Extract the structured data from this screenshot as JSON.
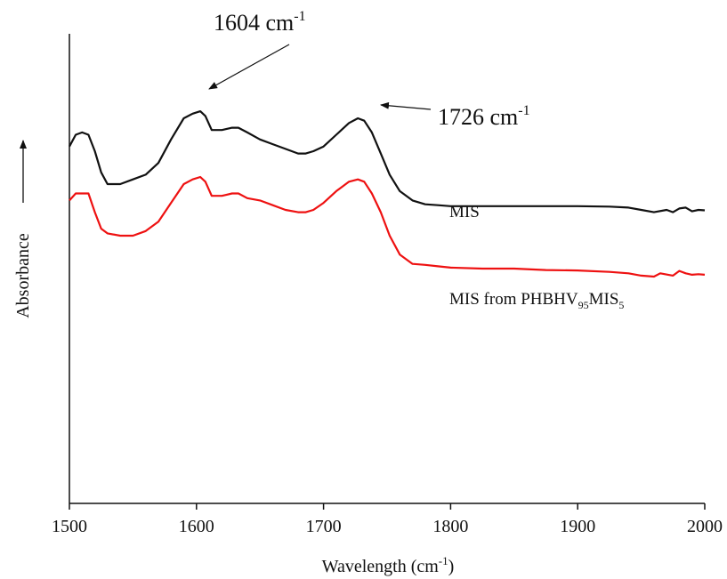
{
  "chart_data": {
    "type": "line",
    "title": "",
    "xlabel": "Wavelength (cm",
    "xlabel_sup": "-1",
    "xlabel_end": ")",
    "ylabel": "Absorbance",
    "xlim": [
      1500,
      2000
    ],
    "ylim": [
      0,
      1
    ],
    "y_ticks_shown": false,
    "grid": false,
    "x_ticks": [
      1500,
      1600,
      1700,
      1800,
      1900,
      2000
    ],
    "x_tick_labels": [
      "1500",
      "1600",
      "1700",
      "1800",
      "1900",
      "2000"
    ],
    "series": [
      {
        "name": "MIS",
        "color": "#111111",
        "x": [
          1500,
          1505,
          1510,
          1515,
          1520,
          1525,
          1530,
          1540,
          1550,
          1560,
          1570,
          1580,
          1590,
          1597,
          1603,
          1607,
          1612,
          1620,
          1628,
          1633,
          1640,
          1650,
          1660,
          1670,
          1680,
          1686,
          1692,
          1700,
          1710,
          1720,
          1727,
          1732,
          1738,
          1745,
          1752,
          1760,
          1770,
          1780,
          1790,
          1800,
          1825,
          1850,
          1875,
          1900,
          1925,
          1940,
          1950,
          1960,
          1970,
          1975,
          1980,
          1985,
          1990,
          1995,
          2000
        ],
        "y": [
          0.76,
          0.785,
          0.79,
          0.785,
          0.75,
          0.705,
          0.68,
          0.68,
          0.69,
          0.7,
          0.725,
          0.775,
          0.82,
          0.83,
          0.835,
          0.825,
          0.795,
          0.795,
          0.8,
          0.8,
          0.79,
          0.775,
          0.765,
          0.755,
          0.745,
          0.745,
          0.75,
          0.76,
          0.785,
          0.81,
          0.82,
          0.815,
          0.79,
          0.745,
          0.7,
          0.665,
          0.645,
          0.637,
          0.635,
          0.633,
          0.633,
          0.633,
          0.633,
          0.633,
          0.632,
          0.63,
          0.625,
          0.62,
          0.625,
          0.62,
          0.628,
          0.63,
          0.622,
          0.625,
          0.624
        ]
      },
      {
        "name": "MIS from PHBHV95MIS5",
        "color": "#ee1111",
        "x": [
          1500,
          1505,
          1510,
          1515,
          1520,
          1525,
          1530,
          1540,
          1550,
          1560,
          1570,
          1580,
          1590,
          1597,
          1603,
          1607,
          1612,
          1620,
          1628,
          1633,
          1640,
          1650,
          1660,
          1670,
          1680,
          1686,
          1692,
          1700,
          1710,
          1720,
          1727,
          1732,
          1738,
          1745,
          1752,
          1760,
          1770,
          1780,
          1790,
          1800,
          1825,
          1850,
          1875,
          1900,
          1925,
          1940,
          1950,
          1960,
          1965,
          1975,
          1980,
          1985,
          1990,
          1995,
          2000
        ],
        "y": [
          0.645,
          0.66,
          0.66,
          0.66,
          0.62,
          0.585,
          0.575,
          0.57,
          0.57,
          0.58,
          0.6,
          0.64,
          0.68,
          0.69,
          0.695,
          0.685,
          0.655,
          0.655,
          0.66,
          0.66,
          0.65,
          0.645,
          0.635,
          0.625,
          0.62,
          0.62,
          0.625,
          0.64,
          0.665,
          0.685,
          0.69,
          0.685,
          0.66,
          0.62,
          0.57,
          0.53,
          0.51,
          0.508,
          0.505,
          0.502,
          0.5,
          0.5,
          0.497,
          0.496,
          0.493,
          0.49,
          0.485,
          0.483,
          0.49,
          0.485,
          0.495,
          0.49,
          0.487,
          0.488,
          0.487
        ]
      }
    ],
    "series_labels": [
      {
        "text": "MIS"
      },
      {
        "text": "MIS from PHBHV",
        "sub1": "95",
        "mid": "MIS",
        "sub2": "5"
      }
    ],
    "annotations": [
      {
        "value": "1604 cm",
        "sup": "-1",
        "points_to_x": 1604
      },
      {
        "value": "1726 cm",
        "sup": "-1",
        "points_to_x": 1726
      }
    ]
  }
}
